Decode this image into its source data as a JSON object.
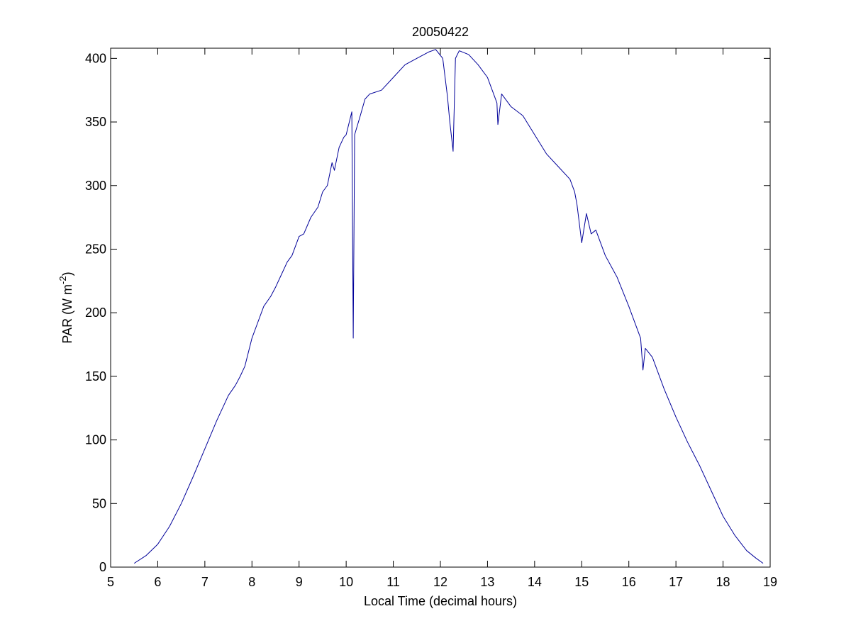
{
  "chart_data": {
    "type": "line",
    "title": "20050422",
    "xlabel": "Local Time (decimal hours)",
    "ylabel": {
      "text": "PAR (W m",
      "superscript": "-2",
      "suffix": ")"
    },
    "x": [
      5.5,
      5.75,
      6,
      6.25,
      6.5,
      6.75,
      7,
      7.25,
      7.5,
      7.65,
      7.75,
      7.85,
      8,
      8.1,
      8.25,
      8.4,
      8.5,
      8.65,
      8.75,
      8.85,
      9,
      9.1,
      9.25,
      9.4,
      9.5,
      9.6,
      9.7,
      9.75,
      9.85,
      9.95,
      10,
      10.08,
      10.12,
      10.15,
      10.18,
      10.22,
      10.3,
      10.4,
      10.5,
      10.75,
      11,
      11.25,
      11.5,
      11.75,
      11.9,
      12.05,
      12.15,
      12.2,
      12.27,
      12.32,
      12.4,
      12.6,
      12.8,
      13,
      13.15,
      13.2,
      13.22,
      13.3,
      13.5,
      13.75,
      14,
      14.25,
      14.5,
      14.75,
      14.85,
      14.9,
      15,
      15.1,
      15.2,
      15.3,
      15.5,
      15.75,
      16,
      16.25,
      16.3,
      16.35,
      16.5,
      16.75,
      17,
      17.25,
      17.5,
      17.75,
      18,
      18.25,
      18.5,
      18.7,
      18.85
    ],
    "series": [
      {
        "color": "#000099",
        "values": [
          3,
          9,
          18,
          32,
          50,
          71,
          93,
          115,
          135,
          143,
          150,
          158,
          180,
          190,
          205,
          213,
          220,
          232,
          240,
          245,
          260,
          262,
          275,
          283,
          295,
          300,
          318,
          312,
          330,
          338,
          340,
          352,
          358,
          180,
          340,
          345,
          355,
          368,
          372,
          375,
          385,
          395,
          400,
          405,
          407,
          400,
          370,
          350,
          327,
          400,
          406,
          403,
          395,
          385,
          370,
          365,
          348,
          372,
          362,
          355,
          340,
          325,
          315,
          305,
          295,
          285,
          255,
          278,
          262,
          265,
          245,
          228,
          205,
          180,
          155,
          172,
          165,
          140,
          118,
          98,
          80,
          60,
          40,
          25,
          13,
          7,
          3
        ]
      }
    ],
    "xlim": [
      5,
      19
    ],
    "ylim": [
      0,
      408
    ],
    "xticks": [
      5,
      6,
      7,
      8,
      9,
      10,
      11,
      12,
      13,
      14,
      15,
      16,
      17,
      18,
      19
    ],
    "yticks": [
      0,
      50,
      100,
      150,
      200,
      250,
      300,
      350,
      400
    ],
    "grid": false
  }
}
